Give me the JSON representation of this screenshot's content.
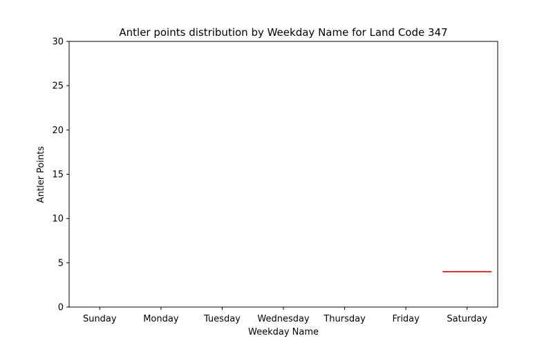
{
  "chart_data": {
    "type": "box",
    "title": "Antler points distribution by Weekday Name for Land Code 347",
    "xlabel": "Weekday Name",
    "ylabel": "Antler Points",
    "categories": [
      "Sunday",
      "Monday",
      "Tuesday",
      "Wednesday",
      "Thursday",
      "Friday",
      "Saturday"
    ],
    "ylim": [
      0,
      30
    ],
    "yticks": [
      0,
      5,
      10,
      15,
      20,
      25,
      30
    ],
    "grid": false,
    "series": [
      {
        "values": [
          null,
          null,
          null,
          null,
          null,
          null,
          4
        ],
        "color": "#cc0000"
      }
    ]
  }
}
